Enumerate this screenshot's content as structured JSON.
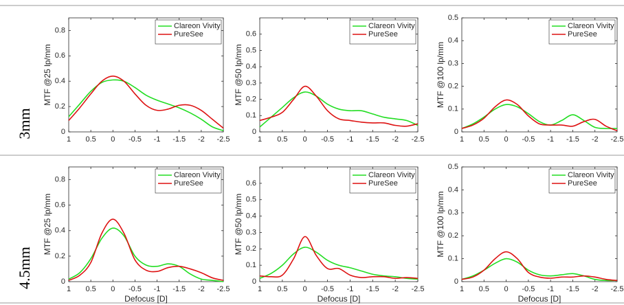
{
  "row_labels": [
    "3mm",
    "4.5mm"
  ],
  "chart_data": [
    {
      "type": "line",
      "ylabel": "MTF @25 lp/mm",
      "x": [
        1,
        0.75,
        0.5,
        0.25,
        0,
        -0.25,
        -0.5,
        -0.75,
        -1,
        -1.25,
        -1.5,
        -1.75,
        -2,
        -2.25,
        -2.5
      ],
      "xlim": [
        1,
        -2.5
      ],
      "xticks": [
        1,
        0.5,
        0,
        -0.5,
        -1,
        -1.5,
        -2,
        -2.5
      ],
      "ylim": [
        0,
        0.9
      ],
      "yticks": [
        0,
        0.2,
        0.4,
        0.6,
        0.8
      ],
      "legend": "upper right",
      "series": [
        {
          "name": "Clareon Vivity",
          "color": "#22dd22",
          "values": [
            0.12,
            0.22,
            0.32,
            0.39,
            0.41,
            0.4,
            0.35,
            0.29,
            0.25,
            0.22,
            0.19,
            0.15,
            0.1,
            0.04,
            0.01
          ]
        },
        {
          "name": "PureSee",
          "color": "#dd1111",
          "values": [
            0.09,
            0.19,
            0.3,
            0.4,
            0.44,
            0.4,
            0.3,
            0.21,
            0.17,
            0.18,
            0.21,
            0.21,
            0.17,
            0.1,
            0.03
          ]
        }
      ]
    },
    {
      "type": "line",
      "ylabel": "MTF @50 lp/mm",
      "x": [
        1,
        0.75,
        0.5,
        0.25,
        0,
        -0.25,
        -0.5,
        -0.75,
        -1,
        -1.25,
        -1.5,
        -1.75,
        -2,
        -2.25,
        -2.5
      ],
      "xlim": [
        1,
        -2.5
      ],
      "xticks": [
        1,
        0.5,
        0,
        -0.5,
        -1,
        -1.5,
        -2,
        -2.5
      ],
      "ylim": [
        0,
        0.7
      ],
      "yticks": [
        0,
        0.1,
        0.2,
        0.3,
        0.4,
        0.5,
        0.6
      ],
      "legend": "upper right",
      "series": [
        {
          "name": "Clareon Vivity",
          "color": "#22dd22",
          "values": [
            0.03,
            0.09,
            0.15,
            0.21,
            0.245,
            0.22,
            0.17,
            0.14,
            0.13,
            0.13,
            0.11,
            0.09,
            0.08,
            0.07,
            0.04
          ]
        },
        {
          "name": "PureSee",
          "color": "#dd1111",
          "values": [
            0.07,
            0.09,
            0.12,
            0.2,
            0.28,
            0.22,
            0.13,
            0.08,
            0.07,
            0.06,
            0.055,
            0.055,
            0.04,
            0.035,
            0.05
          ]
        }
      ]
    },
    {
      "type": "line",
      "ylabel": "MTF @100 lp/mm",
      "x": [
        1,
        0.75,
        0.5,
        0.25,
        0,
        -0.25,
        -0.5,
        -0.75,
        -1,
        -1.25,
        -1.5,
        -1.75,
        -2,
        -2.25,
        -2.5
      ],
      "xlim": [
        1,
        -2.5
      ],
      "xticks": [
        1,
        0.5,
        0,
        -0.5,
        -1,
        -1.5,
        -2,
        -2.5
      ],
      "ylim": [
        0,
        0.5
      ],
      "yticks": [
        0,
        0.1,
        0.2,
        0.3,
        0.4,
        0.5
      ],
      "legend": "upper right",
      "series": [
        {
          "name": "Clareon Vivity",
          "color": "#22dd22",
          "values": [
            0.015,
            0.035,
            0.065,
            0.1,
            0.12,
            0.11,
            0.08,
            0.045,
            0.03,
            0.05,
            0.075,
            0.05,
            0.02,
            0.015,
            0.015
          ]
        },
        {
          "name": "PureSee",
          "color": "#dd1111",
          "values": [
            0.015,
            0.03,
            0.06,
            0.11,
            0.14,
            0.12,
            0.07,
            0.035,
            0.03,
            0.03,
            0.025,
            0.045,
            0.055,
            0.025,
            0.005
          ]
        }
      ]
    },
    {
      "type": "line",
      "ylabel": "MTF @25 lp/mm",
      "xlabel": "Defocus [D]",
      "x": [
        1,
        0.75,
        0.5,
        0.25,
        0,
        -0.25,
        -0.5,
        -0.75,
        -1,
        -1.25,
        -1.5,
        -1.75,
        -2,
        -2.25,
        -2.5
      ],
      "xlim": [
        1,
        -2.5
      ],
      "xticks": [
        1,
        0.5,
        0,
        -0.5,
        -1,
        -1.5,
        -2,
        -2.5
      ],
      "ylim": [
        0,
        0.9
      ],
      "yticks": [
        0,
        0.2,
        0.4,
        0.6,
        0.8
      ],
      "legend": "upper right",
      "series": [
        {
          "name": "Clareon Vivity",
          "color": "#22dd22",
          "values": [
            0.02,
            0.07,
            0.18,
            0.34,
            0.42,
            0.36,
            0.2,
            0.13,
            0.12,
            0.14,
            0.12,
            0.06,
            0.02,
            0.01,
            0.0
          ]
        },
        {
          "name": "PureSee",
          "color": "#dd1111",
          "values": [
            0.01,
            0.05,
            0.15,
            0.38,
            0.49,
            0.38,
            0.17,
            0.09,
            0.08,
            0.11,
            0.12,
            0.1,
            0.07,
            0.03,
            0.01
          ]
        }
      ]
    },
    {
      "type": "line",
      "ylabel": "MTF @50 lp/mm",
      "xlabel": "Defocus [D]",
      "x": [
        1,
        0.75,
        0.5,
        0.25,
        0,
        -0.25,
        -0.5,
        -0.75,
        -1,
        -1.25,
        -1.5,
        -1.75,
        -2,
        -2.25,
        -2.5
      ],
      "xlim": [
        1,
        -2.5
      ],
      "xticks": [
        1,
        0.5,
        0,
        -0.5,
        -1,
        -1.5,
        -2,
        -2.5
      ],
      "ylim": [
        0,
        0.7
      ],
      "yticks": [
        0,
        0.1,
        0.2,
        0.3,
        0.4,
        0.5,
        0.6
      ],
      "legend": "upper right",
      "series": [
        {
          "name": "Clareon Vivity",
          "color": "#22dd22",
          "values": [
            0.02,
            0.05,
            0.1,
            0.17,
            0.21,
            0.18,
            0.13,
            0.1,
            0.085,
            0.065,
            0.045,
            0.035,
            0.03,
            0.02,
            0.015
          ]
        },
        {
          "name": "PureSee",
          "color": "#dd1111",
          "values": [
            0.035,
            0.03,
            0.04,
            0.14,
            0.275,
            0.16,
            0.08,
            0.08,
            0.04,
            0.025,
            0.03,
            0.03,
            0.02,
            0.025,
            0.02
          ]
        }
      ]
    },
    {
      "type": "line",
      "ylabel": "MTF @100 lp/mm",
      "xlabel": "Defocus [D]",
      "x": [
        1,
        0.75,
        0.5,
        0.25,
        0,
        -0.25,
        -0.5,
        -0.75,
        -1,
        -1.25,
        -1.5,
        -1.75,
        -2,
        -2.25,
        -2.5
      ],
      "xlim": [
        1,
        -2.5
      ],
      "xticks": [
        1,
        0.5,
        0,
        -0.5,
        -1,
        -1.5,
        -2,
        -2.5
      ],
      "ylim": [
        0,
        0.5
      ],
      "yticks": [
        0,
        0.1,
        0.2,
        0.3,
        0.4,
        0.5
      ],
      "legend": "upper right",
      "series": [
        {
          "name": "Clareon Vivity",
          "color": "#22dd22",
          "values": [
            0.01,
            0.025,
            0.05,
            0.08,
            0.1,
            0.085,
            0.05,
            0.03,
            0.025,
            0.03,
            0.035,
            0.025,
            0.01,
            0.005,
            0.005
          ]
        },
        {
          "name": "PureSee",
          "color": "#dd1111",
          "values": [
            0.01,
            0.02,
            0.05,
            0.1,
            0.13,
            0.1,
            0.04,
            0.02,
            0.015,
            0.02,
            0.02,
            0.025,
            0.02,
            0.01,
            0.005
          ]
        }
      ]
    }
  ]
}
